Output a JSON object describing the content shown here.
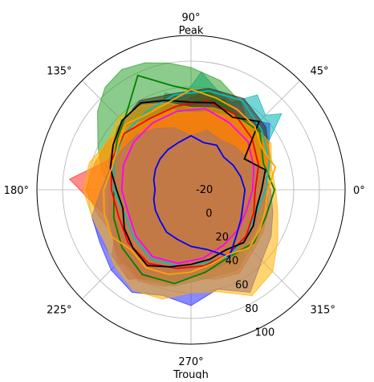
{
  "chart_data": {
    "type": "radar",
    "projection": "polar",
    "angle_unit": "degrees",
    "theta_zero": "east",
    "theta_direction": "counterclockwise",
    "rlim": [
      -20,
      100
    ],
    "r_ticks": [
      "-20",
      "0",
      "20",
      "40",
      "60",
      "80",
      "100"
    ],
    "r_tick_values": [
      -20,
      0,
      20,
      40,
      60,
      80,
      100
    ],
    "theta_ticks": [
      {
        "angle": 0,
        "label": "0°"
      },
      {
        "angle": 45,
        "label": "45°"
      },
      {
        "angle": 90,
        "label": "90°"
      },
      {
        "angle": 135,
        "label": "135°"
      },
      {
        "angle": 180,
        "label": "180°"
      },
      {
        "angle": 225,
        "label": "225°"
      },
      {
        "angle": 270,
        "label": "270°"
      },
      {
        "angle": 315,
        "label": "315°"
      }
    ],
    "annotations": [
      {
        "angle": 90,
        "text": "Peak"
      },
      {
        "angle": 270,
        "text": "Trough"
      }
    ],
    "grid": true,
    "legend": "none",
    "series": [
      {
        "color": "#00b3b3",
        "style": "filled",
        "angles": [
          0,
          20,
          40,
          45,
          55,
          65,
          75,
          85,
          95,
          105,
          115,
          125,
          135,
          145,
          160,
          180,
          200,
          215,
          230,
          245,
          260,
          270,
          285,
          300,
          315,
          330,
          345
        ],
        "values": [
          25,
          35,
          72,
          62,
          70,
          55,
          60,
          72,
          52,
          58,
          40,
          48,
          40,
          32,
          30,
          25,
          20,
          18,
          22,
          20,
          15,
          18,
          20,
          25,
          18,
          20,
          22
        ]
      },
      {
        "color": "#1f5fd6",
        "style": "filled",
        "angles": [
          0,
          15,
          30,
          40,
          55,
          70,
          85,
          100,
          115,
          130,
          145,
          160,
          180,
          200,
          215,
          230,
          245,
          260,
          275,
          290,
          305,
          320,
          335,
          350
        ],
        "values": [
          30,
          42,
          50,
          60,
          48,
          55,
          50,
          45,
          42,
          40,
          35,
          32,
          28,
          30,
          35,
          40,
          48,
          52,
          45,
          40,
          46,
          40,
          36,
          32
        ]
      },
      {
        "color": "#2ca02c",
        "style": "filled",
        "angles": [
          0,
          20,
          45,
          60,
          75,
          90,
          100,
          110,
          120,
          130,
          140,
          155,
          170,
          180,
          195,
          210,
          225,
          240,
          260,
          280,
          300,
          320,
          340
        ],
        "values": [
          20,
          30,
          45,
          58,
          68,
          75,
          80,
          85,
          88,
          84,
          75,
          60,
          50,
          40,
          45,
          50,
          60,
          55,
          45,
          40,
          38,
          32,
          25
        ]
      },
      {
        "color": "#e377c2",
        "style": "filled",
        "angles": [
          0,
          20,
          40,
          60,
          80,
          100,
          120,
          140,
          160,
          180,
          200,
          220,
          240,
          260,
          280,
          300,
          320,
          340
        ],
        "values": [
          30,
          45,
          45,
          55,
          50,
          42,
          46,
          45,
          42,
          40,
          38,
          44,
          48,
          42,
          40,
          44,
          38,
          30
        ]
      },
      {
        "color": "#7f7f00",
        "style": "filled",
        "angles": [
          0,
          20,
          40,
          60,
          80,
          100,
          120,
          140,
          160,
          180,
          200,
          220,
          240,
          260,
          280,
          300,
          320,
          340
        ],
        "values": [
          34,
          40,
          52,
          50,
          58,
          48,
          50,
          44,
          40,
          35,
          42,
          52,
          60,
          56,
          50,
          52,
          44,
          36
        ]
      },
      {
        "color": "#3a2a1a",
        "style": "filled",
        "angles": [
          0,
          20,
          40,
          60,
          80,
          100,
          120,
          140,
          160,
          180,
          200,
          220,
          240,
          260,
          280,
          300,
          320,
          340
        ],
        "values": [
          38,
          46,
          56,
          62,
          60,
          56,
          60,
          55,
          48,
          44,
          48,
          56,
          60,
          52,
          45,
          44,
          40,
          40
        ]
      },
      {
        "color": "#ff6a00",
        "style": "filled",
        "angles": [
          0,
          15,
          30,
          45,
          60,
          75,
          90,
          105,
          120,
          135,
          150,
          165,
          180,
          195,
          210,
          225,
          240,
          255,
          270,
          285,
          300,
          315,
          330,
          345
        ],
        "values": [
          40,
          44,
          50,
          48,
          46,
          42,
          40,
          45,
          44,
          50,
          55,
          58,
          62,
          55,
          50,
          58,
          62,
          58,
          48,
          52,
          55,
          48,
          45,
          42
        ]
      },
      {
        "color": "#ff2d2d",
        "style": "filled",
        "angles": [
          0,
          20,
          40,
          60,
          80,
          100,
          120,
          140,
          160,
          175,
          190,
          205,
          220,
          235,
          250,
          265,
          280,
          300,
          320,
          340
        ],
        "values": [
          30,
          35,
          40,
          45,
          42,
          38,
          40,
          44,
          48,
          75,
          55,
          45,
          60,
          65,
          52,
          44,
          40,
          38,
          35,
          32
        ]
      },
      {
        "color": "#2a2aff",
        "style": "filled",
        "angles": [
          0,
          15,
          30,
          45,
          60,
          75,
          90,
          105,
          120,
          135,
          150,
          165,
          180,
          195,
          210,
          225,
          240,
          255,
          270,
          285,
          300,
          315,
          330,
          345
        ],
        "values": [
          42,
          38,
          30,
          28,
          25,
          28,
          22,
          30,
          35,
          40,
          42,
          45,
          50,
          60,
          62,
          68,
          72,
          65,
          70,
          60,
          72,
          58,
          52,
          46
        ]
      },
      {
        "color": "#ffb000",
        "style": "filled",
        "angles": [
          0,
          15,
          30,
          45,
          60,
          75,
          90,
          105,
          120,
          135,
          150,
          165,
          180,
          195,
          210,
          225,
          240,
          255,
          270,
          285,
          300,
          315,
          330,
          345
        ],
        "values": [
          46,
          45,
          52,
          50,
          48,
          46,
          44,
          50,
          56,
          60,
          55,
          62,
          64,
          60,
          58,
          64,
          70,
          68,
          60,
          62,
          75,
          70,
          58,
          50
        ]
      },
      {
        "color": "#008000",
        "style": "line",
        "angles": [
          0,
          20,
          40,
          60,
          80,
          100,
          115,
          130,
          145,
          160,
          180,
          200,
          220,
          240,
          260,
          280,
          300,
          320,
          340
        ],
        "values": [
          45,
          40,
          50,
          48,
          56,
          62,
          78,
          58,
          50,
          44,
          40,
          44,
          50,
          56,
          54,
          45,
          40,
          44,
          42
        ]
      },
      {
        "color": "#00bfbf",
        "style": "line",
        "angles": [
          0,
          20,
          40,
          60,
          80,
          100,
          120,
          140,
          160,
          180,
          200,
          220,
          240,
          260,
          280,
          300,
          320,
          340
        ],
        "values": [
          38,
          45,
          52,
          60,
          58,
          55,
          50,
          48,
          44,
          40,
          35,
          38,
          42,
          40,
          38,
          40,
          36,
          34
        ]
      },
      {
        "color": "#ff0000",
        "style": "line",
        "angles": [
          0,
          20,
          40,
          60,
          80,
          100,
          120,
          140,
          160,
          180,
          200,
          220,
          240,
          260,
          280,
          300,
          320,
          340
        ],
        "values": [
          30,
          36,
          42,
          48,
          50,
          46,
          44,
          48,
          46,
          42,
          40,
          44,
          46,
          42,
          40,
          38,
          36,
          32
        ]
      },
      {
        "color": "#ff00ff",
        "style": "line",
        "angles": [
          0,
          20,
          40,
          60,
          80,
          100,
          120,
          140,
          160,
          180,
          200,
          220,
          240,
          260,
          280,
          300,
          320,
          340
        ],
        "values": [
          28,
          32,
          38,
          40,
          44,
          42,
          40,
          38,
          36,
          34,
          32,
          36,
          40,
          38,
          34,
          30,
          28,
          26
        ]
      },
      {
        "color": "#000000",
        "style": "line",
        "angles": [
          0,
          15,
          30,
          45,
          60,
          75,
          90,
          105,
          120,
          135,
          150,
          165,
          180,
          195,
          210,
          225,
          240,
          255,
          270,
          285,
          300,
          315,
          330,
          345
        ],
        "values": [
          35,
          40,
          28,
          55,
          45,
          50,
          48,
          52,
          58,
          56,
          50,
          45,
          38,
          35,
          40,
          44,
          48,
          42,
          38,
          36,
          34,
          38,
          36,
          33
        ]
      },
      {
        "color": "#0000ff",
        "style": "line",
        "angles": [
          0,
          15,
          30,
          45,
          60,
          75,
          90,
          105,
          120,
          135,
          150,
          165,
          180,
          195,
          210,
          225,
          240,
          255,
          270,
          285,
          300,
          315,
          330,
          345
        ],
        "values": [
          22,
          20,
          18,
          16,
          20,
          18,
          22,
          18,
          16,
          14,
          12,
          10,
          8,
          10,
          12,
          14,
          18,
          20,
          24,
          28,
          40,
          30,
          25,
          22
        ]
      },
      {
        "color": "#ffa500",
        "style": "line",
        "angles": [
          0,
          15,
          30,
          45,
          60,
          75,
          90,
          105,
          120,
          135,
          150,
          165,
          180,
          195,
          210,
          225,
          240,
          255,
          270,
          285,
          300,
          315,
          330,
          345
        ],
        "values": [
          40,
          48,
          44,
          50,
          52,
          54,
          58,
          50,
          48,
          52,
          46,
          44,
          48,
          50,
          52,
          46,
          50,
          48,
          44,
          40,
          38,
          44,
          42,
          40
        ]
      }
    ]
  }
}
